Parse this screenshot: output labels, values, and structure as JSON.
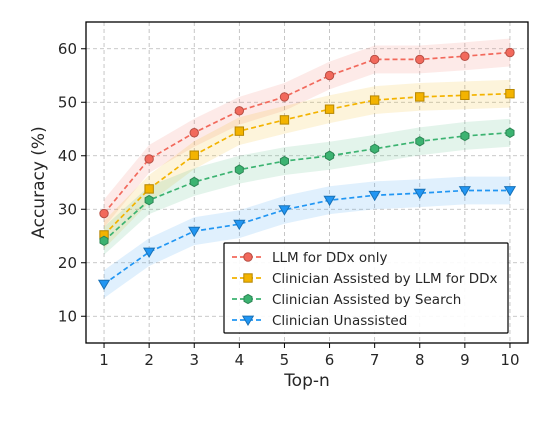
{
  "chart_data": {
    "type": "line",
    "title": "",
    "xlabel": "Top-n",
    "ylabel": "Accuracy (%)",
    "x": [
      1,
      2,
      3,
      4,
      5,
      6,
      7,
      8,
      9,
      10
    ],
    "xlim": [
      0.6,
      10.4
    ],
    "ylim": [
      5,
      65
    ],
    "yticks": [
      10,
      20,
      30,
      40,
      50,
      60
    ],
    "grid": true,
    "legend_position": "lower-right",
    "series": [
      {
        "name": "LLM for DDx only",
        "color": "#f2695c",
        "marker": "circle",
        "values": [
          29.2,
          39.4,
          44.3,
          48.4,
          51.0,
          55.0,
          58.0,
          58.0,
          58.6,
          59.3
        ],
        "band": 2.6
      },
      {
        "name": "Clinician Assisted by LLM for DDx",
        "color": "#f3b300",
        "marker": "square",
        "values": [
          25.2,
          33.8,
          40.1,
          44.6,
          46.7,
          48.7,
          50.4,
          51.0,
          51.3,
          51.6
        ],
        "band": 2.6
      },
      {
        "name": "Clinician Assisted by Search",
        "color": "#3cb371",
        "marker": "hexagon",
        "values": [
          24.1,
          31.7,
          35.1,
          37.4,
          39.0,
          40.0,
          41.3,
          42.7,
          43.7,
          44.3
        ],
        "band": 2.6
      },
      {
        "name": "Clinician Unassisted",
        "color": "#2196f3",
        "marker": "triangle-down",
        "values": [
          16.0,
          22.0,
          25.9,
          27.2,
          29.9,
          31.7,
          32.6,
          33.0,
          33.5,
          33.5
        ],
        "band": 2.6
      }
    ]
  }
}
